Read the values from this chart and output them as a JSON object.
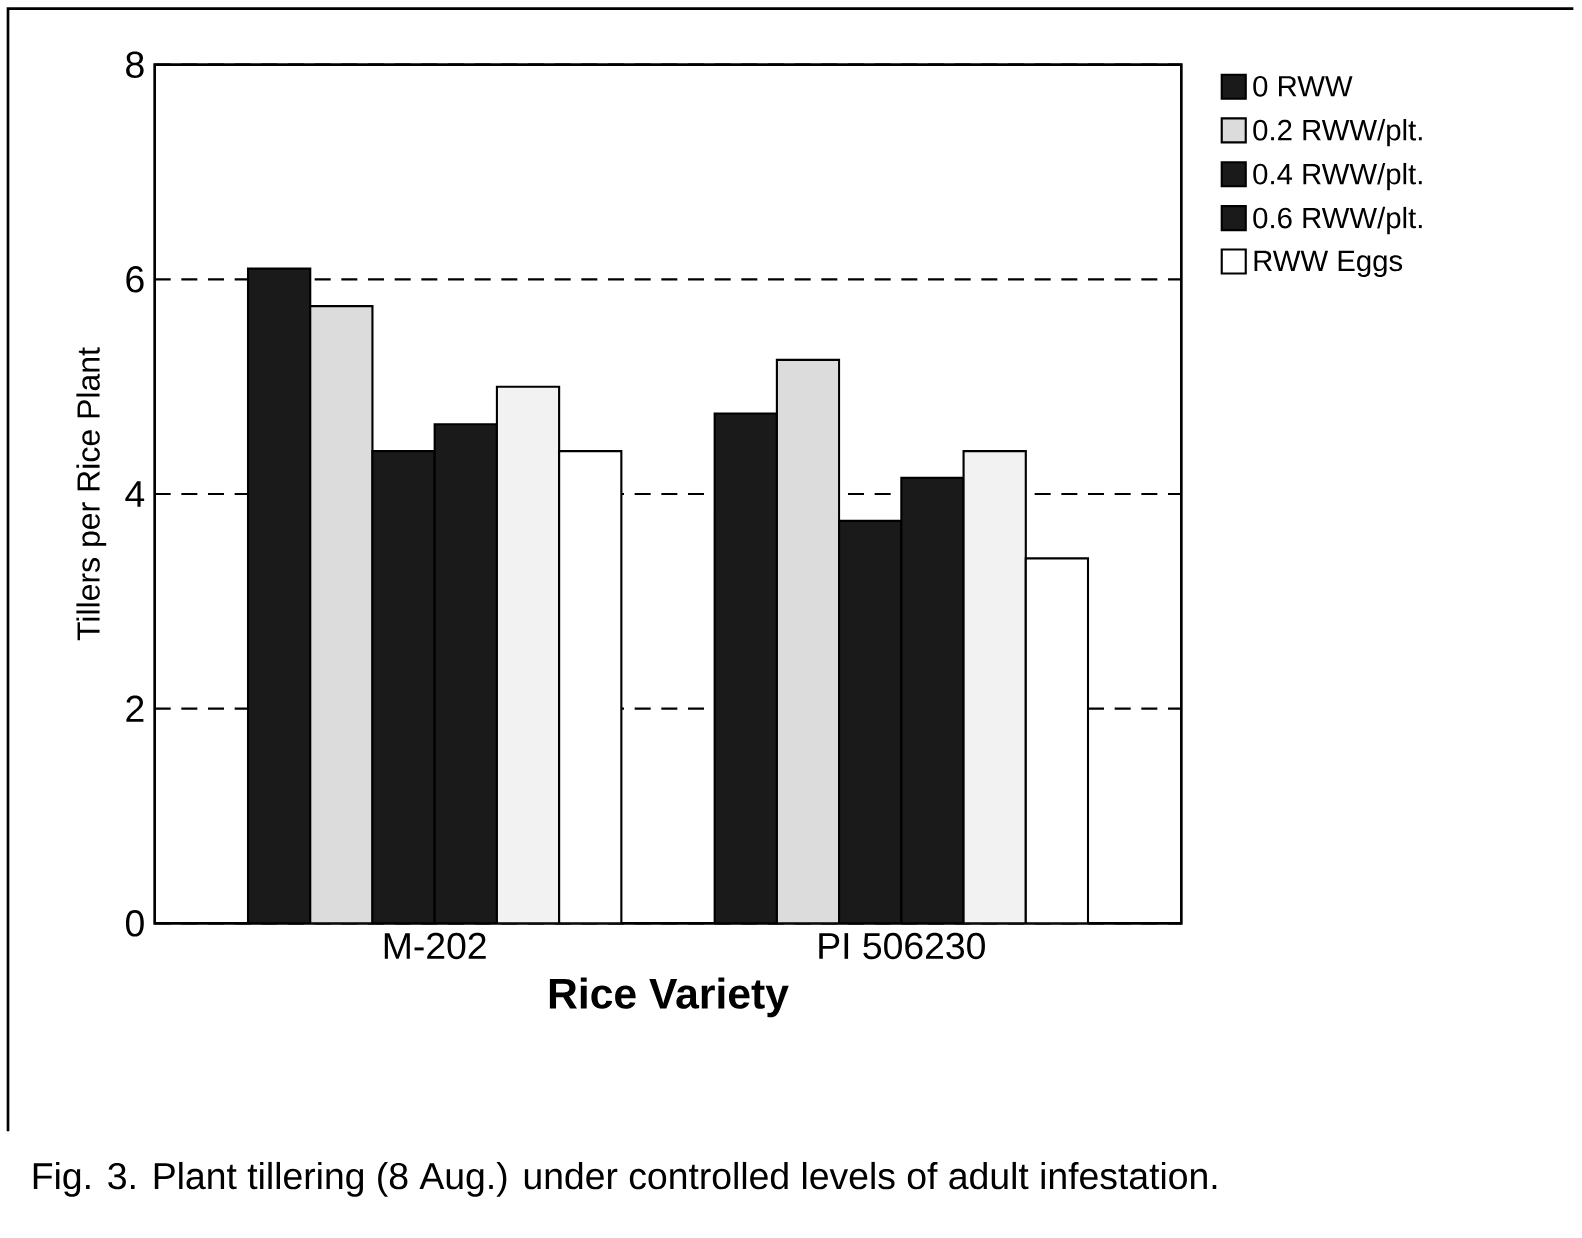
{
  "chart_data": {
    "type": "bar",
    "xlabel": "Rice Variety",
    "ylabel": "Tillers per Rice Plant",
    "categories": [
      "M-202",
      "PI 506230"
    ],
    "series": [
      {
        "name": "0 RWW",
        "color": "#1a1a1a",
        "values": [
          6.1,
          4.75
        ]
      },
      {
        "name": "0.2 RWW/plt.",
        "color": "#dcdcdc",
        "values": [
          5.75,
          5.25
        ]
      },
      {
        "name": "0.4 RWW/plt.",
        "color": "#1a1a1a",
        "values": [
          4.4,
          3.75
        ]
      },
      {
        "name": "0.6 RWW/plt.",
        "color": "#1a1a1a",
        "values": [
          4.65,
          4.15
        ]
      },
      {
        "color": "#f2f2f2",
        "values": [
          5.0,
          4.4
        ]
      },
      {
        "name": "RWW Eggs",
        "color": "#ffffff",
        "values": [
          4.4,
          3.4
        ]
      }
    ],
    "ylim": [
      0,
      8
    ],
    "yticks": [
      0,
      2,
      4,
      6,
      8
    ],
    "grid": "y",
    "legend": "right",
    "annotations": [
      "Fig. 3.  Plant tillering (8 Aug.) under controlled levels of adult infestation."
    ]
  }
}
